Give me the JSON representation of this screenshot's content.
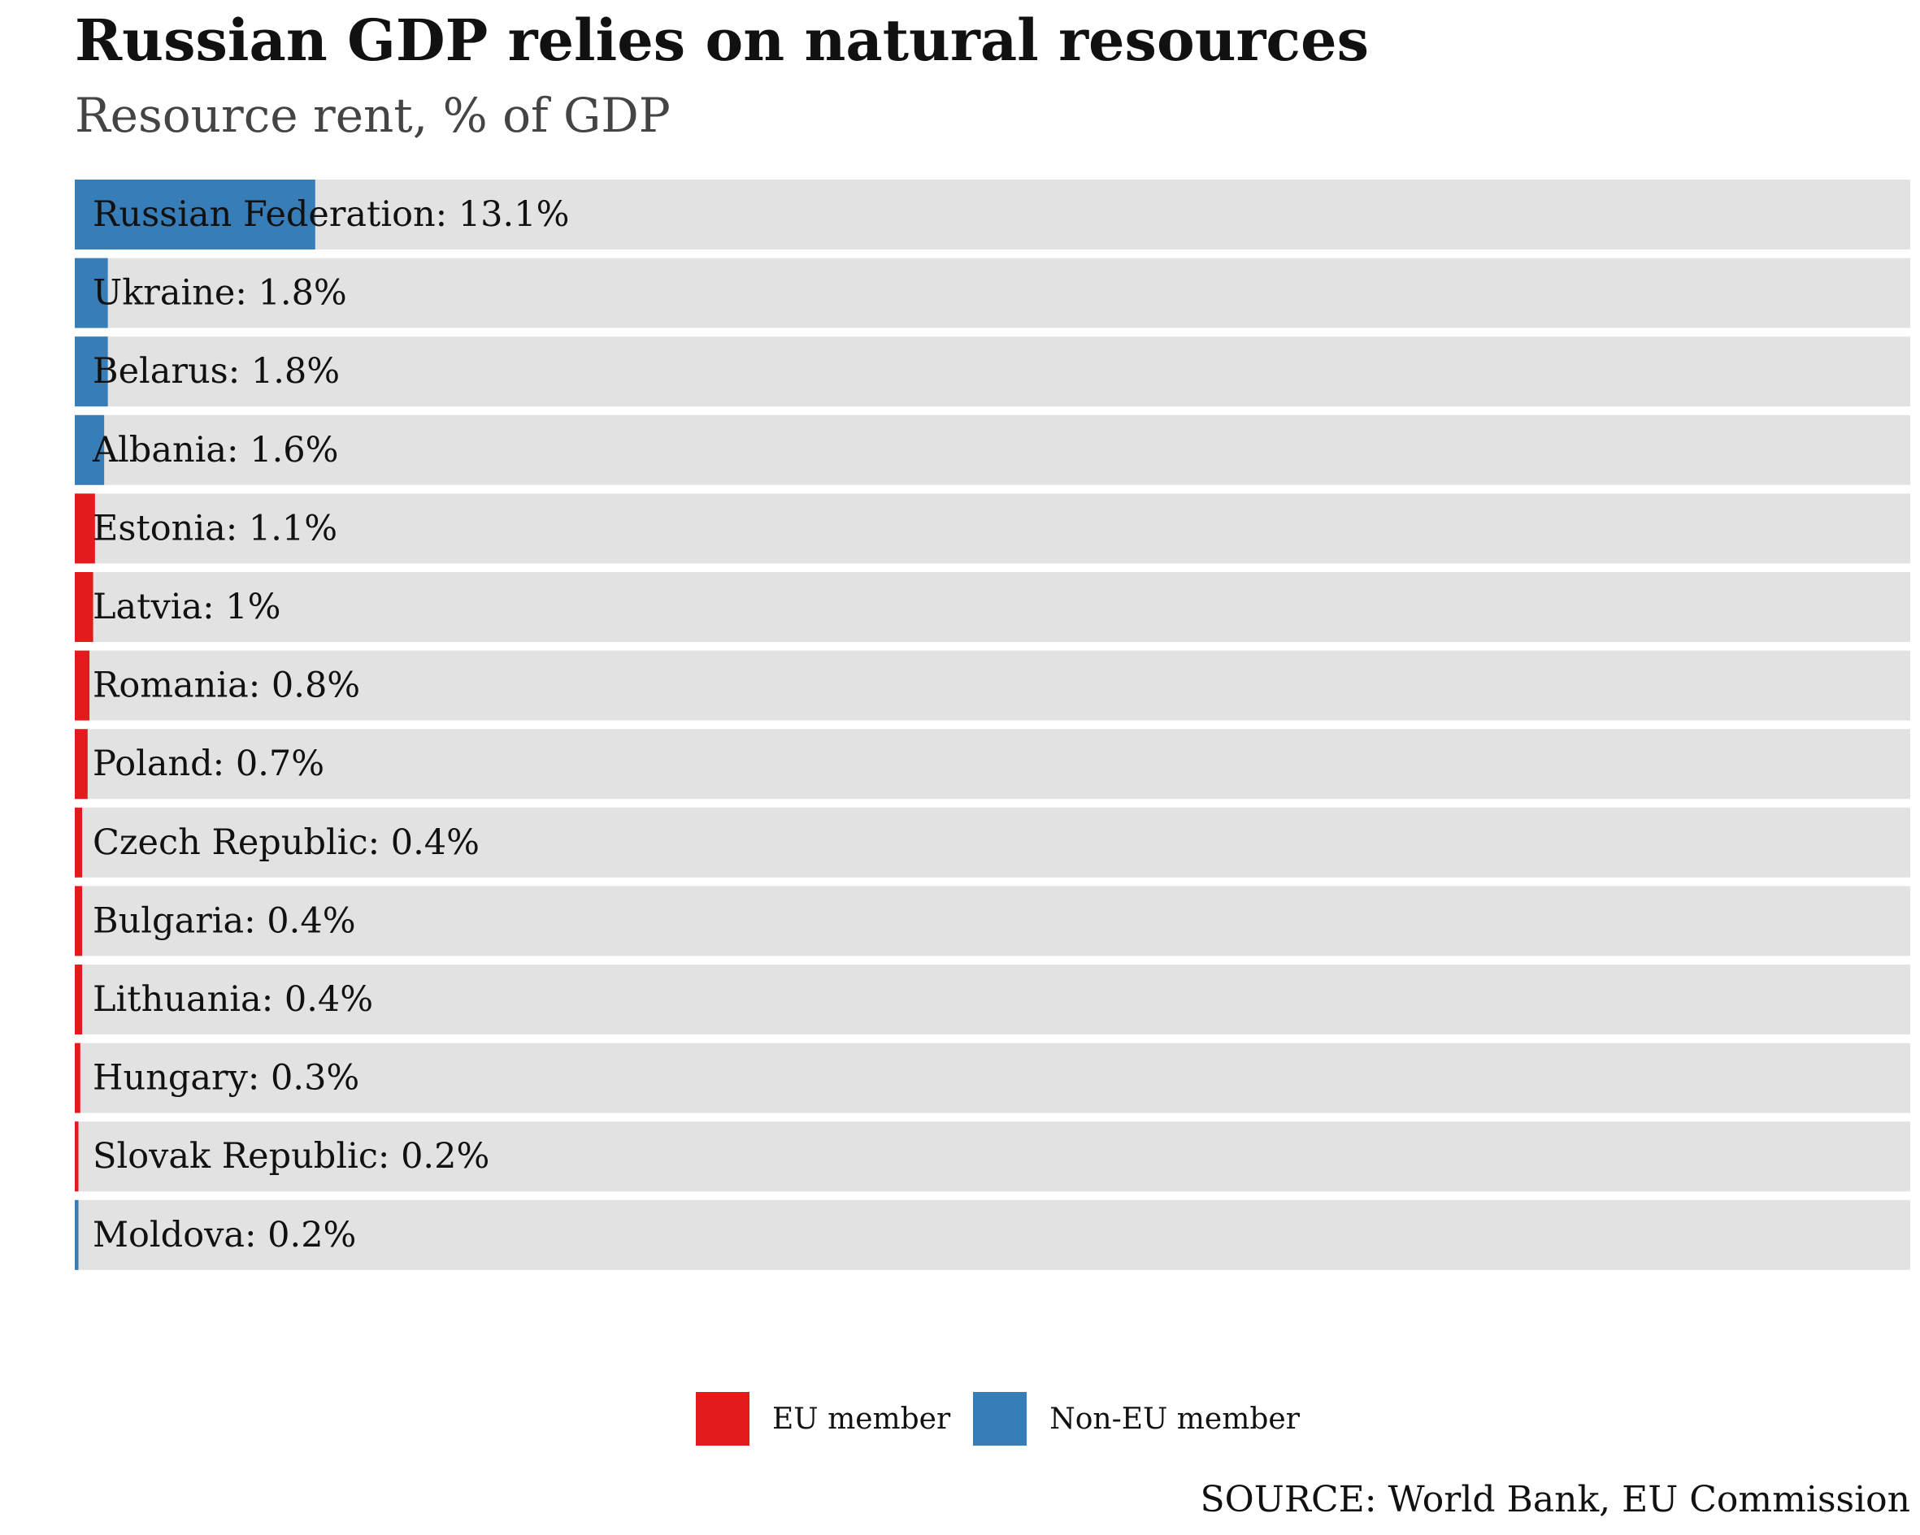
{
  "chart_data": {
    "type": "bar",
    "orientation": "horizontal",
    "title": "Russian GDP relies on natural resources",
    "subtitle": "Resource rent, % of GDP",
    "categories": [
      "Russian Federation",
      "Ukraine",
      "Belarus",
      "Albania",
      "Estonia",
      "Latvia",
      "Romania",
      "Poland",
      "Czech Republic",
      "Bulgaria",
      "Lithuania",
      "Hungary",
      "Slovak Republic",
      "Moldova"
    ],
    "values": [
      13.1,
      1.8,
      1.8,
      1.6,
      1.1,
      1.0,
      0.8,
      0.7,
      0.4,
      0.4,
      0.4,
      0.3,
      0.2,
      0.2
    ],
    "labels": [
      "Russian Federation: 13.1%",
      "Ukraine: 1.8%",
      "Belarus: 1.8%",
      "Albania: 1.6%",
      "Estonia: 1.1%",
      "Latvia: 1%",
      "Romania: 0.8%",
      "Poland: 0.7%",
      "Czech Republic: 0.4%",
      "Bulgaria: 0.4%",
      "Lithuania: 0.4%",
      "Hungary: 0.3%",
      "Slovak Republic: 0.2%",
      "Moldova: 0.2%"
    ],
    "groups": [
      "Non-EU member",
      "Non-EU member",
      "Non-EU member",
      "Non-EU member",
      "EU member",
      "EU member",
      "EU member",
      "EU member",
      "EU member",
      "EU member",
      "EU member",
      "EU member",
      "EU member",
      "Non-EU member"
    ],
    "xlim": [
      0,
      100
    ],
    "grid": false,
    "legend": {
      "position": "bottom-center",
      "entries": [
        {
          "name": "EU member",
          "color": "#e41a1c"
        },
        {
          "name": "Non-EU member",
          "color": "#377eb8"
        }
      ]
    },
    "colors": {
      "EU member": "#e41a1c",
      "Non-EU member": "#377eb8",
      "track": "#e2e2e2"
    },
    "source": "SOURCE: World Bank, EU Commission"
  }
}
